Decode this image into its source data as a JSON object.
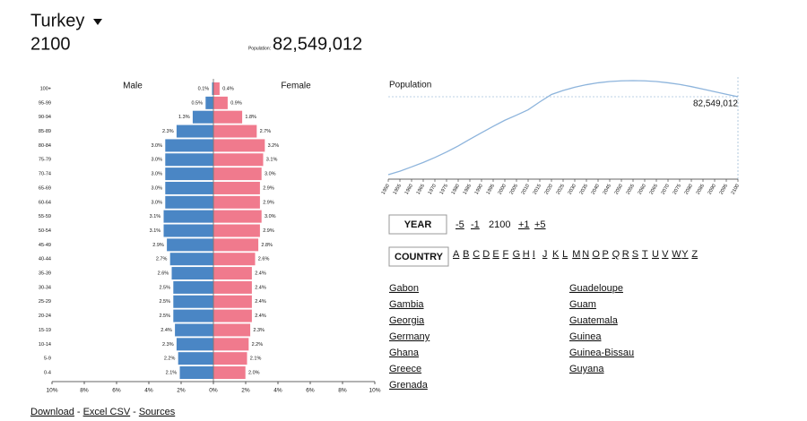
{
  "header": {
    "country": "Turkey",
    "year": "2100",
    "population_label": "Population:",
    "population": "82,549,012"
  },
  "chart_data": [
    {
      "type": "pyramid",
      "categories": [
        "0-4",
        "5-9",
        "10-14",
        "15-19",
        "20-24",
        "25-29",
        "30-34",
        "35-39",
        "40-44",
        "45-49",
        "50-54",
        "55-59",
        "60-64",
        "65-69",
        "70-74",
        "75-79",
        "80-84",
        "85-89",
        "90-94",
        "95-99",
        "100+"
      ],
      "series": [
        {
          "name": "Male",
          "color": "#4a86c5",
          "values": [
            2.1,
            2.2,
            2.3,
            2.4,
            2.5,
            2.5,
            2.5,
            2.6,
            2.7,
            2.9,
            3.1,
            3.1,
            3.0,
            3.0,
            3.0,
            3.0,
            3.0,
            2.3,
            1.3,
            0.5,
            0.1
          ],
          "value_labels": [
            "2.1%",
            "2.2%",
            "2.3%",
            "2.4%",
            "2.5%",
            "2.5%",
            "2.5%",
            "2.6%",
            "2.7%",
            "2.9%",
            "3.1%",
            "3.1%",
            "3.0%",
            "3.0%",
            "3.0%",
            "3.0%",
            "3.0%",
            "2.3%",
            "1.3%",
            "0.5%",
            "0.1%"
          ]
        },
        {
          "name": "Female",
          "color": "#f07a8d",
          "values": [
            2.0,
            2.1,
            2.2,
            2.3,
            2.4,
            2.4,
            2.4,
            2.4,
            2.6,
            2.8,
            2.9,
            3.0,
            2.9,
            2.9,
            3.0,
            3.1,
            3.2,
            2.7,
            1.8,
            0.9,
            0.4
          ],
          "value_labels": [
            "2.0%",
            "2.1%",
            "2.2%",
            "2.3%",
            "2.4%",
            "2.4%",
            "2.4%",
            "2.4%",
            "2.6%",
            "2.8%",
            "2.9%",
            "3.0%",
            "2.9%",
            "2.9%",
            "3.0%",
            "3.1%",
            "3.2%",
            "2.7%",
            "1.8%",
            "0.9%",
            "0.4%"
          ]
        }
      ],
      "xlim": [
        0,
        10
      ],
      "xticks": [
        {
          "value": 0,
          "label": "0%"
        },
        {
          "value": 2,
          "label": "2%"
        },
        {
          "value": 4,
          "label": "4%"
        },
        {
          "value": 6,
          "label": "6%"
        },
        {
          "value": 8,
          "label": "8%"
        },
        {
          "value": 10,
          "label": "10%"
        }
      ]
    },
    {
      "type": "line",
      "title": "Population",
      "x": [
        1950,
        1955,
        1960,
        1965,
        1970,
        1975,
        1980,
        1985,
        1990,
        1995,
        2000,
        2005,
        2010,
        2015,
        2020,
        2025,
        2030,
        2035,
        2040,
        2045,
        2050,
        2055,
        2060,
        2065,
        2070,
        2075,
        2080,
        2085,
        2090,
        2095,
        2100
      ],
      "series": [
        {
          "color": "#8db4dc",
          "values": [
            21400000,
            24100000,
            27500000,
            31000000,
            34900000,
            39200000,
            43900000,
            49200000,
            54300000,
            59300000,
            64100000,
            68100000,
            72300000,
            78500000,
            84300000,
            87500000,
            90000000,
            92000000,
            93500000,
            94500000,
            95000000,
            95200000,
            95000000,
            94500000,
            93500000,
            92200000,
            90500000,
            88500000,
            86500000,
            84500000,
            82549012
          ]
        }
      ],
      "annotation": "82,549,012",
      "xticks": [
        1950,
        1955,
        1960,
        1965,
        1970,
        1975,
        1980,
        1985,
        1990,
        1995,
        2000,
        2005,
        2010,
        2015,
        2020,
        2025,
        2030,
        2035,
        2040,
        2045,
        2050,
        2055,
        2060,
        2065,
        2070,
        2075,
        2080,
        2085,
        2090,
        2095,
        2100
      ]
    }
  ],
  "controls": {
    "year_button": "YEAR",
    "year_links_before": [
      "-5",
      "-1"
    ],
    "year": "2100",
    "year_links_after": [
      "+1",
      "+5"
    ],
    "country_button": "COUNTRY",
    "letters": [
      "A",
      "B",
      "C",
      "D",
      "E",
      "F",
      "G",
      "H",
      "I",
      "J",
      "K",
      "L",
      "M",
      "N",
      "O",
      "P",
      "Q",
      "R",
      "S",
      "T",
      "U",
      "V",
      "W",
      "Y",
      "Z"
    ]
  },
  "countries": [
    [
      "Gabon",
      "Gambia",
      "Georgia",
      "Germany",
      "Ghana",
      "Greece",
      "Grenada"
    ],
    [
      "Guadeloupe",
      "Guam",
      "Guatemala",
      "Guinea",
      "Guinea-Bissau",
      "Guyana"
    ]
  ],
  "footer": {
    "links": [
      "Download",
      "Excel CSV",
      "Sources"
    ],
    "separator": "-"
  }
}
